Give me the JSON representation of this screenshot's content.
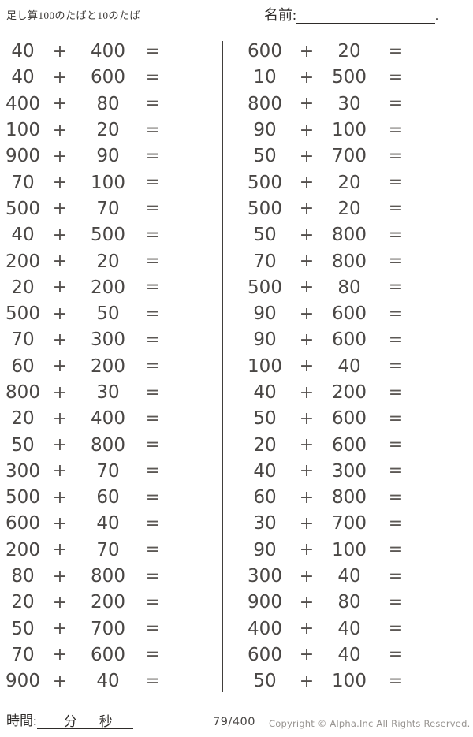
{
  "header": {
    "title": "足し算100のたばと10のたば",
    "name_label": "名前:",
    "name_suffix": "."
  },
  "problems": {
    "operator": "+",
    "equals_sign": "=",
    "left": [
      {
        "a": "40",
        "b": "400"
      },
      {
        "a": "40",
        "b": "600"
      },
      {
        "a": "400",
        "b": "80"
      },
      {
        "a": "100",
        "b": "20"
      },
      {
        "a": "900",
        "b": "90"
      },
      {
        "a": "70",
        "b": "100"
      },
      {
        "a": "500",
        "b": "70"
      },
      {
        "a": "40",
        "b": "500"
      },
      {
        "a": "200",
        "b": "20"
      },
      {
        "a": "20",
        "b": "200"
      },
      {
        "a": "500",
        "b": "50"
      },
      {
        "a": "70",
        "b": "300"
      },
      {
        "a": "60",
        "b": "200"
      },
      {
        "a": "800",
        "b": "30"
      },
      {
        "a": "20",
        "b": "400"
      },
      {
        "a": "50",
        "b": "800"
      },
      {
        "a": "300",
        "b": "70"
      },
      {
        "a": "500",
        "b": "60"
      },
      {
        "a": "600",
        "b": "40"
      },
      {
        "a": "200",
        "b": "70"
      },
      {
        "a": "80",
        "b": "800"
      },
      {
        "a": "20",
        "b": "200"
      },
      {
        "a": "50",
        "b": "700"
      },
      {
        "a": "70",
        "b": "600"
      },
      {
        "a": "900",
        "b": "40"
      }
    ],
    "right": [
      {
        "a": "600",
        "b": "20"
      },
      {
        "a": "10",
        "b": "500"
      },
      {
        "a": "800",
        "b": "30"
      },
      {
        "a": "90",
        "b": "100"
      },
      {
        "a": "50",
        "b": "700"
      },
      {
        "a": "500",
        "b": "20"
      },
      {
        "a": "500",
        "b": "20"
      },
      {
        "a": "50",
        "b": "800"
      },
      {
        "a": "70",
        "b": "800"
      },
      {
        "a": "500",
        "b": "80"
      },
      {
        "a": "90",
        "b": "600"
      },
      {
        "a": "90",
        "b": "600"
      },
      {
        "a": "100",
        "b": "40"
      },
      {
        "a": "40",
        "b": "200"
      },
      {
        "a": "50",
        "b": "600"
      },
      {
        "a": "20",
        "b": "600"
      },
      {
        "a": "40",
        "b": "300"
      },
      {
        "a": "60",
        "b": "800"
      },
      {
        "a": "30",
        "b": "700"
      },
      {
        "a": "90",
        "b": "100"
      },
      {
        "a": "300",
        "b": "40"
      },
      {
        "a": "900",
        "b": "80"
      },
      {
        "a": "400",
        "b": "40"
      },
      {
        "a": "600",
        "b": "40"
      },
      {
        "a": "50",
        "b": "100"
      }
    ]
  },
  "footer": {
    "time_label": "時間:",
    "minutes_label": "分",
    "seconds_label": "秒",
    "page": "79/400",
    "copyright": "Copyright ©  Alpha.Inc All Rights Reserved."
  },
  "colors": {
    "ink": "#4a4745",
    "label_ink": "#2e2b29",
    "muted": "#989491"
  }
}
